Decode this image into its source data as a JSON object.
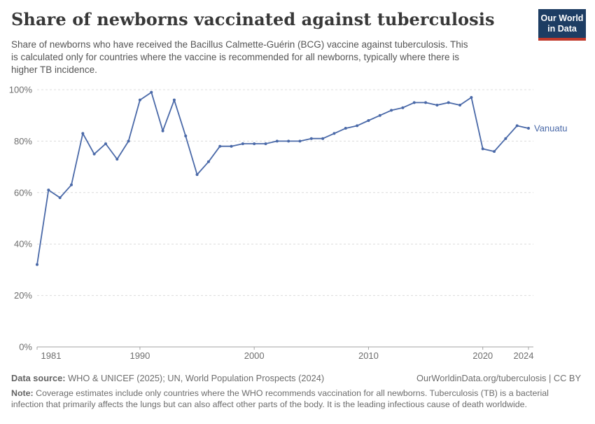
{
  "header": {
    "title": "Share of newborns vaccinated against tuberculosis",
    "subtitle": "Share of newborns who have received the Bacillus Calmette-Guérin (BCG) vaccine against tuberculosis. This\nis calculated only for countries where the vaccine is recommended for all newborns, typically where there is\nhigher TB incidence."
  },
  "logo": {
    "line1": "Our World",
    "line2": "in Data",
    "bg_color": "#1d3d63",
    "bar_color": "#c0392b"
  },
  "chart_data": {
    "type": "line",
    "title": "Share of newborns vaccinated against tuberculosis",
    "x": [
      1981,
      1982,
      1983,
      1984,
      1985,
      1986,
      1987,
      1988,
      1989,
      1990,
      1991,
      1992,
      1993,
      1994,
      1995,
      1996,
      1997,
      1998,
      1999,
      2000,
      2001,
      2002,
      2003,
      2004,
      2005,
      2006,
      2007,
      2008,
      2009,
      2010,
      2011,
      2012,
      2013,
      2014,
      2015,
      2016,
      2017,
      2018,
      2019,
      2020,
      2021,
      2022,
      2023,
      2024
    ],
    "series": [
      {
        "name": "Vanuatu",
        "color": "#4a69a8",
        "values": [
          32,
          61,
          58,
          63,
          83,
          75,
          79,
          73,
          80,
          96,
          99,
          84,
          96,
          82,
          67,
          72,
          78,
          78,
          79,
          79,
          79,
          80,
          80,
          80,
          81,
          81,
          83,
          85,
          86,
          88,
          90,
          92,
          93,
          95,
          95,
          94,
          95,
          94,
          97,
          77,
          76,
          81,
          86,
          85
        ]
      }
    ],
    "xlabel": "",
    "ylabel": "",
    "ylim": [
      0,
      100
    ],
    "yticks": [
      0,
      20,
      40,
      60,
      80,
      100
    ],
    "ytick_suffix": "%",
    "xticks": [
      1981,
      1990,
      2000,
      2010,
      2020,
      2024
    ],
    "grid": true,
    "legend_position": "end-of-line-label"
  },
  "colors": {
    "line": "#4a69a8",
    "grid": "#dcdcdc",
    "axis": "#a3a3a3",
    "tick_label": "#6e6e6e",
    "title": "#383838",
    "subtitle": "#555555",
    "footer": "#6d6d6d"
  },
  "footer": {
    "datasource_label": "Data source:",
    "datasource_text": "WHO & UNICEF (2025); UN, World Population Prospects (2024)",
    "link_text": "OurWorldinData.org/tuberculosis | CC BY",
    "note_label": "Note:",
    "note_text": "Coverage estimates include only countries where the WHO recommends vaccination for all newborns. Tuberculosis (TB) is a bacterial\ninfection that primarily affects the lungs but can also affect other parts of the body. It is the leading infectious cause of death worldwide."
  }
}
